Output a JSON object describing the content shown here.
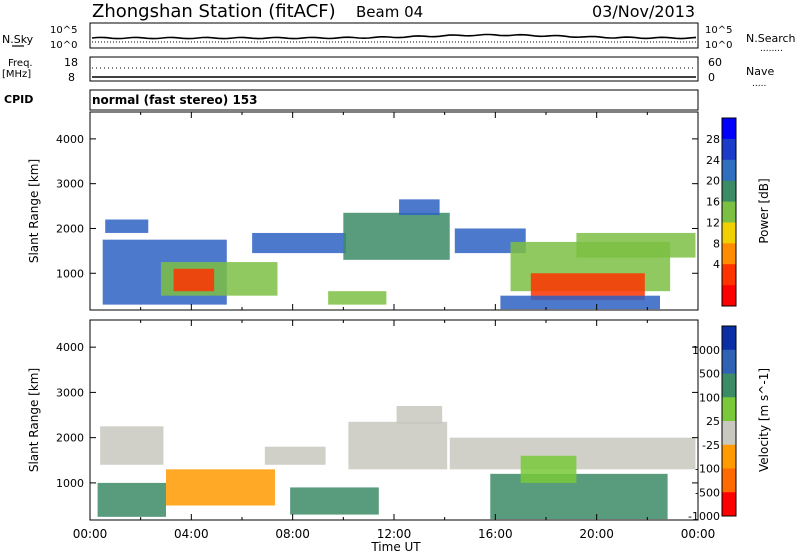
{
  "header": {
    "station": "Zhongshan Station (fitACF)",
    "beam": "Beam 04",
    "date": "03/Nov/2013"
  },
  "params": {
    "nsky_label": "N.Sky",
    "nsearch_label": "N.Search",
    "freq_label_1": "Freq.",
    "freq_label_2": "[MHz]",
    "nave_label": "Nave",
    "cpid_label": "CPID",
    "cpid_value": "normal (fast stereo) 153",
    "ticks": {
      "nsky_left_top": "10^5",
      "nsky_left_bottom": "10^0",
      "nsky_right_top": "10^5",
      "nsky_right_bottom": "10^0",
      "freq_left_top": "18",
      "freq_left_bottom": "8",
      "nave_right_top": "60",
      "nave_right_bottom": "0"
    }
  },
  "chart_data": [
    {
      "type": "heatmap",
      "title": "",
      "xlabel": "",
      "ylabel": "Slant Range [km]",
      "x_range_hours": [
        0,
        24
      ],
      "ylim": [
        180,
        4600
      ],
      "yticks": [
        "1000",
        "2000",
        "3000",
        "4000"
      ],
      "colorbar": {
        "label": "Power [dB]",
        "ticks": [
          "4",
          "8",
          "12",
          "16",
          "20",
          "24",
          "28"
        ],
        "colors": [
          "#0000ff",
          "#1a3cc8",
          "#2e6fbf",
          "#3b8b66",
          "#7cc043",
          "#f0d000",
          "#ff8c00",
          "#ff3300",
          "#ff0000"
        ]
      },
      "echo_regions": [
        {
          "t0": 0.5,
          "t1": 5.4,
          "r0": 300,
          "r1": 1750,
          "color": "#2e62c4"
        },
        {
          "t0": 0.6,
          "t1": 2.3,
          "r0": 1900,
          "r1": 2200,
          "color": "#2e62c4"
        },
        {
          "t0": 2.8,
          "t1": 7.4,
          "r0": 500,
          "r1": 1250,
          "color": "#7cc043"
        },
        {
          "t0": 3.3,
          "t1": 4.9,
          "r0": 600,
          "r1": 1100,
          "color": "#ff3300"
        },
        {
          "t0": 6.4,
          "t1": 10.1,
          "r0": 1450,
          "r1": 1900,
          "color": "#2e62c4"
        },
        {
          "t0": 9.4,
          "t1": 11.7,
          "r0": 300,
          "r1": 600,
          "color": "#7cc043"
        },
        {
          "t0": 10.0,
          "t1": 14.2,
          "r0": 1300,
          "r1": 2350,
          "color": "#3b8b66"
        },
        {
          "t0": 12.2,
          "t1": 13.8,
          "r0": 2300,
          "r1": 2650,
          "color": "#2e62c4"
        },
        {
          "t0": 14.4,
          "t1": 17.2,
          "r0": 1450,
          "r1": 2000,
          "color": "#2e62c4"
        },
        {
          "t0": 16.6,
          "t1": 22.9,
          "r0": 600,
          "r1": 1700,
          "color": "#7cc043"
        },
        {
          "t0": 17.4,
          "t1": 21.9,
          "r0": 400,
          "r1": 1000,
          "color": "#ff3300"
        },
        {
          "t0": 16.2,
          "t1": 22.5,
          "r0": 200,
          "r1": 500,
          "color": "#2e62c4"
        },
        {
          "t0": 19.2,
          "t1": 23.9,
          "r0": 1350,
          "r1": 1900,
          "color": "#7cc043"
        }
      ]
    },
    {
      "type": "heatmap",
      "title": "",
      "xlabel": "Time UT",
      "ylabel": "Slant Range [km]",
      "x_range_hours": [
        0,
        24
      ],
      "xticks": [
        "00:00",
        "04:00",
        "08:00",
        "12:00",
        "16:00",
        "20:00",
        "00:00"
      ],
      "ylim": [
        180,
        4600
      ],
      "yticks": [
        "1000",
        "2000",
        "3000",
        "4000"
      ],
      "colorbar": {
        "label": "Velocity [m s^-1]",
        "ticks": [
          "1000",
          "500",
          "100",
          "25",
          "-25",
          "-100",
          "-500",
          "-1000"
        ],
        "colors": [
          "#0a2ea6",
          "#2f62b5",
          "#3b8b66",
          "#79c93a",
          "#c8c8c0",
          "#ff9a00",
          "#ff6a00",
          "#ff0000"
        ]
      },
      "echo_regions": [
        {
          "t0": 0.4,
          "t1": 2.9,
          "r0": 1400,
          "r1": 2250,
          "color": "#c8c8c0"
        },
        {
          "t0": 0.3,
          "t1": 3.0,
          "r0": 250,
          "r1": 1000,
          "color": "#3b8b66"
        },
        {
          "t0": 3.0,
          "t1": 7.3,
          "r0": 500,
          "r1": 1300,
          "color": "#ff9a00"
        },
        {
          "t0": 6.9,
          "t1": 9.3,
          "r0": 1400,
          "r1": 1800,
          "color": "#c8c8c0"
        },
        {
          "t0": 7.9,
          "t1": 11.4,
          "r0": 300,
          "r1": 900,
          "color": "#3b8b66"
        },
        {
          "t0": 10.2,
          "t1": 14.1,
          "r0": 1300,
          "r1": 2350,
          "color": "#c8c8c0"
        },
        {
          "t0": 12.1,
          "t1": 13.9,
          "r0": 2300,
          "r1": 2700,
          "color": "#c8c8c0"
        },
        {
          "t0": 14.2,
          "t1": 23.9,
          "r0": 1300,
          "r1": 2000,
          "color": "#c8c8c0"
        },
        {
          "t0": 15.8,
          "t1": 22.8,
          "r0": 200,
          "r1": 1200,
          "color": "#3b8b66"
        },
        {
          "t0": 17.0,
          "t1": 19.2,
          "r0": 1000,
          "r1": 1600,
          "color": "#79c93a"
        }
      ]
    }
  ]
}
